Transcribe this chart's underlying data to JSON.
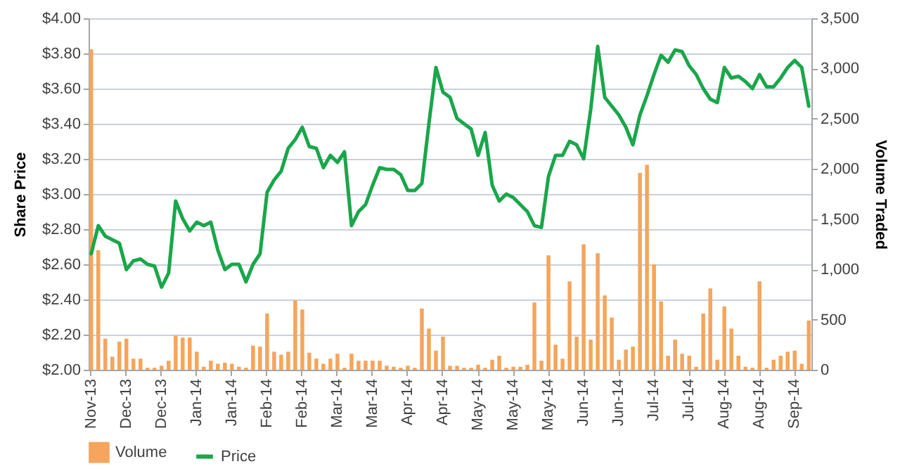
{
  "chart_data": {
    "type": "line",
    "ylabel": "Share Price",
    "y2label": "Volume Traded",
    "categories": [
      "Nov-13",
      null,
      null,
      null,
      null,
      "Dec-13",
      null,
      null,
      null,
      null,
      "Dec-13",
      null,
      null,
      null,
      null,
      "Jan-14",
      null,
      null,
      null,
      null,
      "Jan-14",
      null,
      null,
      null,
      null,
      "Feb-14",
      null,
      null,
      null,
      null,
      "Feb-14",
      null,
      null,
      null,
      null,
      "Mar-14",
      null,
      null,
      null,
      null,
      "Mar-14",
      null,
      null,
      null,
      null,
      "Apr-14",
      null,
      null,
      null,
      null,
      "Apr-14",
      null,
      null,
      null,
      null,
      "May-14",
      null,
      null,
      null,
      null,
      "May-14",
      null,
      null,
      null,
      null,
      "May-14",
      null,
      null,
      null,
      null,
      "Jun-14",
      null,
      null,
      null,
      null,
      "Jun-14",
      null,
      null,
      null,
      null,
      "Jul-14",
      null,
      null,
      null,
      null,
      "Jul-14",
      null,
      null,
      null,
      null,
      "Aug-14",
      null,
      null,
      null,
      null,
      "Aug-14",
      null,
      null,
      null,
      null,
      "Sep-14",
      null,
      null
    ],
    "series": [
      {
        "name": "Volume",
        "type": "bar",
        "axis": "y2",
        "color": "#f5a55c",
        "values": [
          3190,
          1190,
          310,
          130,
          280,
          310,
          110,
          110,
          20,
          20,
          40,
          90,
          340,
          320,
          320,
          180,
          30,
          90,
          60,
          70,
          60,
          30,
          20,
          240,
          230,
          560,
          180,
          150,
          180,
          690,
          600,
          170,
          110,
          60,
          110,
          160,
          20,
          160,
          90,
          90,
          90,
          90,
          40,
          30,
          20,
          40,
          20,
          610,
          410,
          190,
          330,
          40,
          40,
          20,
          20,
          50,
          20,
          100,
          140,
          20,
          30,
          30,
          50,
          670,
          90,
          1140,
          250,
          110,
          880,
          330,
          1250,
          300,
          1160,
          740,
          520,
          100,
          200,
          230,
          1960,
          2040,
          1050,
          680,
          140,
          300,
          160,
          140,
          30,
          560,
          810,
          100,
          630,
          410,
          140,
          30,
          20,
          880,
          20,
          100,
          140,
          180,
          190,
          60,
          490
        ]
      },
      {
        "name": "Price",
        "color": "#1aa64a",
        "values": [
          2.66,
          2.82,
          2.76,
          2.74,
          2.72,
          2.57,
          2.62,
          2.63,
          2.6,
          2.59,
          2.47,
          2.55,
          2.96,
          2.86,
          2.79,
          2.84,
          2.82,
          2.84,
          2.68,
          2.57,
          2.6,
          2.6,
          2.5,
          2.6,
          2.66,
          3.01,
          3.08,
          3.13,
          3.26,
          3.31,
          3.38,
          3.27,
          3.26,
          3.15,
          3.22,
          3.18,
          3.24,
          2.82,
          2.9,
          2.94,
          3.05,
          3.15,
          3.14,
          3.14,
          3.11,
          3.02,
          3.02,
          3.06,
          3.4,
          3.72,
          3.58,
          3.55,
          3.43,
          3.4,
          3.37,
          3.22,
          3.35,
          3.05,
          2.96,
          3.0,
          2.98,
          2.94,
          2.9,
          2.82,
          2.81,
          3.1,
          3.22,
          3.22,
          3.3,
          3.28,
          3.2,
          3.48,
          3.84,
          3.55,
          3.5,
          3.45,
          3.38,
          3.28,
          3.45,
          3.56,
          3.68,
          3.79,
          3.75,
          3.82,
          3.81,
          3.73,
          3.68,
          3.6,
          3.54,
          3.52,
          3.72,
          3.66,
          3.67,
          3.64,
          3.6,
          3.68,
          3.61,
          3.61,
          3.66,
          3.72,
          3.76,
          3.72,
          3.5
        ]
      }
    ],
    "ylim": [
      2,
      4
    ],
    "yticks": [
      {
        "value": 2,
        "label": "$2.00"
      },
      {
        "value": 2.2,
        "label": "$2.20"
      },
      {
        "value": 2.4,
        "label": "$2.40"
      },
      {
        "value": 2.6,
        "label": "$2.60"
      },
      {
        "value": 2.8,
        "label": "$2.80"
      },
      {
        "value": 3,
        "label": "$3.00"
      },
      {
        "value": 3.2,
        "label": "$3.20"
      },
      {
        "value": 3.4,
        "label": "$3.40"
      },
      {
        "value": 3.6,
        "label": "$3.60"
      },
      {
        "value": 3.8,
        "label": "$3.80"
      },
      {
        "value": 4,
        "label": "$4.00"
      }
    ],
    "y2lim": [
      0,
      3500
    ],
    "y2ticks": [
      0,
      500,
      {
        "value": 1000,
        "label": "1,000"
      },
      {
        "value": 1500,
        "label": "1,500"
      },
      {
        "value": 2000,
        "label": "2,000"
      },
      {
        "value": 2500,
        "label": "2,500"
      },
      {
        "value": 3000,
        "label": "3,000"
      },
      {
        "value": 3500,
        "label": "3,500"
      }
    ],
    "grid": "y",
    "legend": "bottom"
  }
}
